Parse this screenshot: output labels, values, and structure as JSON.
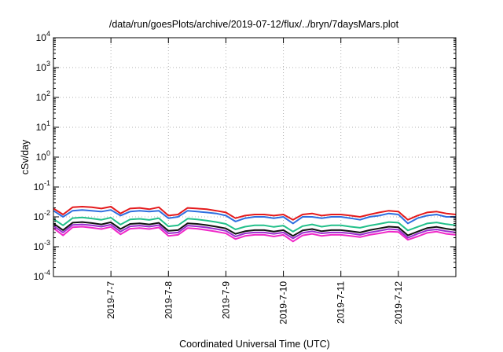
{
  "chart_data": {
    "type": "line",
    "title": "/data/run/goesPlots/archive/2019-07-12/flux/../bryn/7daysMars.plot",
    "xlabel": "Coordinated Universal Time (UTC)",
    "ylabel": "cSv/day",
    "yscale": "log",
    "ylim": [
      0.0001,
      10000
    ],
    "y_ticks": [
      {
        "value": 0.0001,
        "base": "10",
        "exp": "-4"
      },
      {
        "value": 0.001,
        "base": "10",
        "exp": "-3"
      },
      {
        "value": 0.01,
        "base": "10",
        "exp": "-2"
      },
      {
        "value": 0.1,
        "base": "10",
        "exp": "-1"
      },
      {
        "value": 1,
        "base": "10",
        "exp": "0"
      },
      {
        "value": 10,
        "base": "10",
        "exp": "1"
      },
      {
        "value": 100,
        "base": "10",
        "exp": "2"
      },
      {
        "value": 1000,
        "base": "10",
        "exp": "3"
      },
      {
        "value": 10000,
        "base": "10",
        "exp": "4"
      }
    ],
    "x_range": [
      "2019-07-06T00:00",
      "2019-07-13T00:00"
    ],
    "x_ticks": [
      "2019-7-7",
      "2019-7-8",
      "2019-7-9",
      "2019-7-10",
      "2019-7-11",
      "2019-7-12"
    ],
    "grid": true,
    "legend": "none",
    "x": [
      "2019-07-06T00:00",
      "2019-07-06T04:00",
      "2019-07-06T08:00",
      "2019-07-06T12:00",
      "2019-07-06T16:00",
      "2019-07-06T20:00",
      "2019-07-07T00:00",
      "2019-07-07T04:00",
      "2019-07-07T08:00",
      "2019-07-07T12:00",
      "2019-07-07T16:00",
      "2019-07-07T20:00",
      "2019-07-08T00:00",
      "2019-07-08T04:00",
      "2019-07-08T08:00",
      "2019-07-08T12:00",
      "2019-07-08T16:00",
      "2019-07-08T20:00",
      "2019-07-09T00:00",
      "2019-07-09T04:00",
      "2019-07-09T08:00",
      "2019-07-09T12:00",
      "2019-07-09T16:00",
      "2019-07-09T20:00",
      "2019-07-10T00:00",
      "2019-07-10T04:00",
      "2019-07-10T08:00",
      "2019-07-10T12:00",
      "2019-07-10T16:00",
      "2019-07-10T20:00",
      "2019-07-11T00:00",
      "2019-07-11T04:00",
      "2019-07-11T08:00",
      "2019-07-11T12:00",
      "2019-07-11T16:00",
      "2019-07-11T20:00",
      "2019-07-12T00:00",
      "2019-07-12T04:00",
      "2019-07-12T08:00",
      "2019-07-12T12:00",
      "2019-07-12T16:00",
      "2019-07-12T20:00",
      "2019-07-13T00:00"
    ],
    "series": [
      {
        "color": "#e41a1c",
        "values": [
          0.019,
          0.012,
          0.021,
          0.022,
          0.021,
          0.019,
          0.022,
          0.013,
          0.019,
          0.02,
          0.018,
          0.021,
          0.011,
          0.012,
          0.02,
          0.019,
          0.018,
          0.016,
          0.014,
          0.009,
          0.011,
          0.012,
          0.012,
          0.011,
          0.012,
          0.008,
          0.012,
          0.013,
          0.011,
          0.012,
          0.012,
          0.011,
          0.01,
          0.012,
          0.014,
          0.016,
          0.015,
          0.008,
          0.011,
          0.014,
          0.015,
          0.013,
          0.012
        ]
      },
      {
        "color": "#2e6fe0",
        "values": [
          0.016,
          0.01,
          0.016,
          0.017,
          0.016,
          0.015,
          0.017,
          0.011,
          0.015,
          0.016,
          0.015,
          0.016,
          0.009,
          0.01,
          0.016,
          0.015,
          0.014,
          0.013,
          0.011,
          0.007,
          0.009,
          0.01,
          0.01,
          0.009,
          0.01,
          0.006,
          0.01,
          0.01,
          0.009,
          0.01,
          0.01,
          0.009,
          0.008,
          0.01,
          0.011,
          0.013,
          0.012,
          0.006,
          0.009,
          0.011,
          0.012,
          0.01,
          0.01
        ]
      },
      {
        "color": "#22c08a",
        "values": [
          0.0085,
          0.0052,
          0.0091,
          0.0095,
          0.0088,
          0.008,
          0.0094,
          0.0055,
          0.0082,
          0.0086,
          0.0079,
          0.009,
          0.0048,
          0.0052,
          0.0087,
          0.0082,
          0.0075,
          0.0067,
          0.0058,
          0.0038,
          0.0047,
          0.0052,
          0.0052,
          0.0046,
          0.0051,
          0.0032,
          0.0049,
          0.0056,
          0.0047,
          0.0052,
          0.0052,
          0.0047,
          0.0043,
          0.0051,
          0.0058,
          0.0067,
          0.0064,
          0.0035,
          0.0046,
          0.006,
          0.0065,
          0.0057,
          0.0052
        ]
      },
      {
        "color": "#111111",
        "values": [
          0.006,
          0.0036,
          0.0064,
          0.0067,
          0.0062,
          0.0056,
          0.0066,
          0.0039,
          0.0058,
          0.0061,
          0.0056,
          0.0063,
          0.0034,
          0.0036,
          0.0061,
          0.0058,
          0.0053,
          0.0047,
          0.0041,
          0.0027,
          0.0033,
          0.0036,
          0.0036,
          0.0032,
          0.0036,
          0.0023,
          0.0035,
          0.0039,
          0.0033,
          0.0036,
          0.0036,
          0.0033,
          0.003,
          0.0036,
          0.0041,
          0.0047,
          0.0045,
          0.0024,
          0.0032,
          0.0042,
          0.0046,
          0.004,
          0.0036
        ]
      },
      {
        "color": "#9b2fd0",
        "values": [
          0.005,
          0.003,
          0.0054,
          0.0056,
          0.0052,
          0.0047,
          0.0055,
          0.0032,
          0.0048,
          0.0051,
          0.0047,
          0.0053,
          0.0028,
          0.003,
          0.0051,
          0.0048,
          0.0044,
          0.0039,
          0.0034,
          0.0022,
          0.0028,
          0.003,
          0.003,
          0.0027,
          0.003,
          0.0019,
          0.0029,
          0.0033,
          0.0028,
          0.003,
          0.003,
          0.0028,
          0.0025,
          0.003,
          0.0034,
          0.0039,
          0.0037,
          0.002,
          0.0027,
          0.0035,
          0.0038,
          0.0033,
          0.003
        ]
      },
      {
        "color": "#f028c8",
        "values": [
          0.0042,
          0.0024,
          0.0045,
          0.0047,
          0.0043,
          0.0039,
          0.0046,
          0.0026,
          0.004,
          0.0042,
          0.0039,
          0.0044,
          0.0023,
          0.0025,
          0.0042,
          0.004,
          0.0036,
          0.0032,
          0.0028,
          0.0018,
          0.0023,
          0.0025,
          0.0025,
          0.0022,
          0.0025,
          0.0015,
          0.0024,
          0.0027,
          0.0023,
          0.0025,
          0.0025,
          0.0023,
          0.0021,
          0.0025,
          0.0028,
          0.0032,
          0.0031,
          0.0017,
          0.0022,
          0.0029,
          0.0032,
          0.0027,
          0.0025
        ]
      }
    ]
  }
}
